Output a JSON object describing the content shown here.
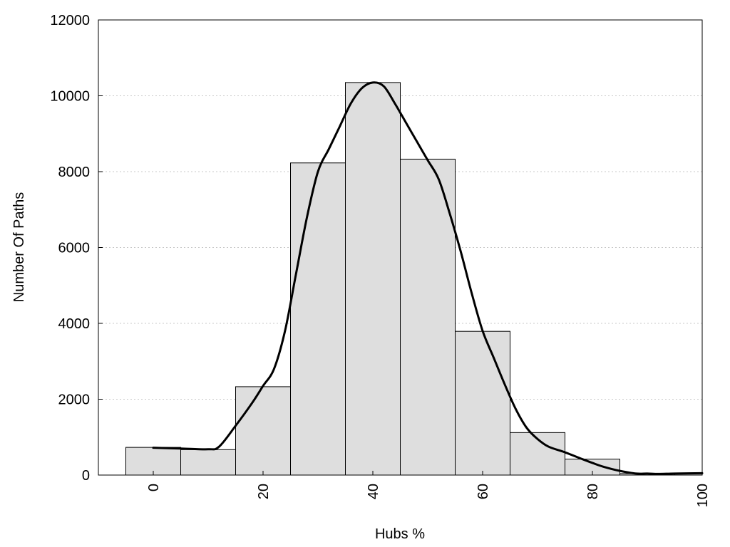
{
  "chart_data": {
    "type": "bar",
    "title": "",
    "xlabel": "Hubs %",
    "ylabel": "Number Of Paths",
    "xlim": [
      -10,
      100
    ],
    "ylim": [
      0,
      12000
    ],
    "x_ticks": [
      0,
      20,
      40,
      60,
      80,
      100
    ],
    "y_ticks": [
      0,
      2000,
      4000,
      6000,
      8000,
      10000,
      12000
    ],
    "grid": "horizontal dotted",
    "bar_width": 10,
    "bars": {
      "centers": [
        0,
        10,
        20,
        30,
        40,
        50,
        60,
        70,
        80,
        90,
        100
      ],
      "values": [
        730,
        670,
        2330,
        8230,
        10350,
        8330,
        3790,
        1120,
        420,
        40,
        50
      ]
    },
    "curve": {
      "x": [
        0,
        5,
        10,
        12,
        15,
        18,
        20,
        22,
        24,
        26,
        28,
        30,
        32,
        34,
        36,
        38,
        40,
        42,
        44,
        46,
        48,
        50,
        52,
        54,
        56,
        58,
        60,
        62,
        64,
        66,
        68,
        70,
        72,
        75,
        78,
        80,
        82,
        85,
        88,
        90,
        92,
        95,
        100
      ],
      "y": [
        720,
        700,
        680,
        750,
        1300,
        1900,
        2350,
        2800,
        3800,
        5300,
        6800,
        8000,
        8600,
        9200,
        9800,
        10200,
        10350,
        10250,
        9800,
        9300,
        8800,
        8300,
        7800,
        6900,
        5900,
        4800,
        3800,
        3100,
        2400,
        1750,
        1250,
        950,
        750,
        600,
        430,
        320,
        220,
        110,
        40,
        40,
        30,
        40,
        50
      ]
    },
    "colors": {
      "bar_fill": "#dedede",
      "bar_stroke": "#000000",
      "curve": "#000000",
      "grid": "#c8c8c8"
    }
  }
}
